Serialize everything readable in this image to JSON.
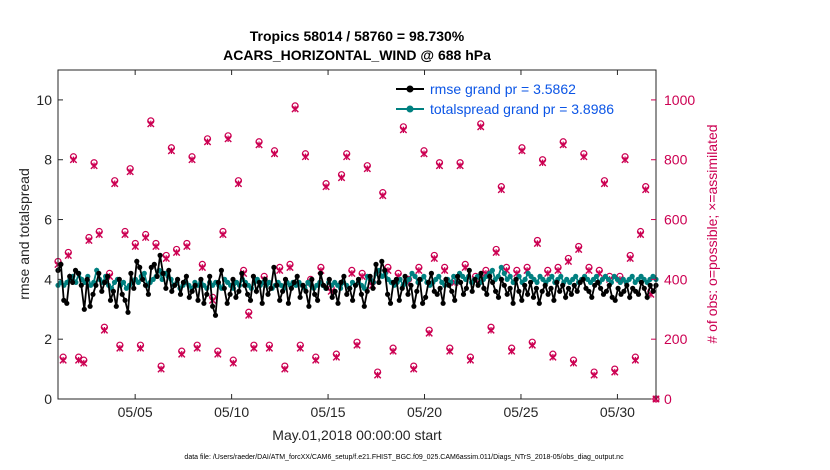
{
  "chart_data": {
    "type": "line",
    "title": "Tropics 58014 / 58760 = 98.730%",
    "subtitle": "ACARS_HORIZONTAL_WIND @ 688 hPa",
    "xlabel": "May.01,2018 00:00:00 start",
    "ylabel_left": "rmse and totalspread",
    "ylabel_right": "# of obs: o=possible; ×=assimilated",
    "x_range_days": [
      1,
      32
    ],
    "xticks": [
      {
        "day": 5,
        "label": "05/05"
      },
      {
        "day": 10,
        "label": "05/10"
      },
      {
        "day": 15,
        "label": "05/15"
      },
      {
        "day": 20,
        "label": "05/20"
      },
      {
        "day": 25,
        "label": "05/25"
      },
      {
        "day": 30,
        "label": "05/30"
      }
    ],
    "ylim_left": [
      0,
      11
    ],
    "yticks_left": [
      "0",
      "2",
      "4",
      "6",
      "8",
      "10"
    ],
    "ylim_right": [
      0,
      1100
    ],
    "yticks_right": [
      "0",
      "200",
      "400",
      "600",
      "800",
      "1000"
    ],
    "footnote": "data file: /Users/raeder/DAI/ATM_forcXX/CAM6_setup/f.e21.FHIST_BGC.f09_025.CAM6assim.011/Diags_NTrS_2018-05/obs_diag_output.nc",
    "legend_position": "top-right",
    "series": [
      {
        "name": "rmse grand pr = 3.5862",
        "axis": "left",
        "color": "#000000",
        "marker": "circle",
        "values": [
          4.3,
          4.5,
          3.3,
          3.2,
          4.1,
          3.9,
          4.3,
          4.2,
          3.8,
          3.0,
          4.0,
          3.1,
          3.5,
          3.8,
          4.2,
          3.6,
          3.9,
          4.1,
          3.3,
          3.6,
          3.1,
          4.0,
          3.5,
          3.3,
          2.9,
          4.2,
          3.7,
          4.6,
          4.4,
          4.0,
          3.8,
          3.5,
          4.4,
          4.5,
          4.1,
          4.8,
          4.2,
          3.7,
          4.3,
          3.6,
          3.8,
          4.0,
          3.5,
          3.9,
          4.1,
          3.4,
          3.6,
          3.8,
          3.3,
          4.0,
          3.2,
          3.5,
          4.1,
          3.1,
          2.8,
          3.9,
          4.3,
          3.7,
          3.2,
          3.5,
          4.0,
          3.4,
          3.6,
          4.2,
          3.8,
          3.5,
          3.3,
          4.1,
          3.6,
          3.9,
          3.2,
          4.0,
          3.5,
          3.7,
          4.4,
          3.8,
          3.3,
          3.6,
          4.0,
          3.2,
          3.7,
          3.9,
          4.1,
          3.4,
          3.8,
          3.6,
          3.1,
          4.0,
          3.5,
          3.3,
          4.2,
          3.8,
          3.7,
          4.0,
          3.4,
          3.6,
          3.2,
          3.9,
          4.1,
          3.5,
          3.7,
          3.3,
          3.8,
          4.0,
          3.5,
          3.1,
          3.6,
          4.1,
          3.7,
          4.5,
          3.9,
          4.6,
          4.3,
          3.5,
          3.2,
          3.9,
          4.0,
          3.3,
          3.7,
          4.1,
          3.5,
          3.8,
          3.1,
          3.6,
          4.0,
          3.2,
          3.4,
          3.9,
          4.2,
          3.6,
          3.5,
          3.7,
          3.2,
          4.0,
          3.8,
          3.6,
          3.3,
          4.1,
          3.9,
          3.5,
          3.7,
          4.3,
          3.6,
          4.0,
          3.8,
          4.2,
          3.7,
          3.5,
          4.1,
          3.9,
          3.6,
          3.4,
          4.0,
          3.8,
          3.5,
          3.7,
          3.2,
          4.0,
          3.6,
          3.3,
          3.8,
          3.5,
          3.9,
          3.4,
          3.7,
          3.2,
          3.6,
          3.8,
          3.5,
          3.7,
          3.3,
          3.9,
          3.6,
          3.8,
          3.4,
          3.7,
          3.5,
          3.8,
          3.6,
          3.9,
          4.0,
          3.7,
          3.6,
          3.4,
          3.8,
          3.9,
          3.7,
          3.5,
          3.6,
          3.8,
          3.4,
          3.3,
          3.7,
          3.5,
          3.6,
          3.8,
          3.4,
          3.7,
          3.6,
          3.5,
          3.9,
          3.7,
          3.4,
          3.8,
          3.6,
          3.8
        ]
      },
      {
        "name": "totalspread grand pr = 3.8986",
        "axis": "left",
        "color": "#008080",
        "marker": "circle",
        "values": [
          3.8,
          3.9,
          3.8,
          3.9,
          4.0,
          4.1,
          3.9,
          4.2,
          4.0,
          3.9,
          4.1,
          3.8,
          3.9,
          4.3,
          4.0,
          3.9,
          4.1,
          3.8,
          3.7,
          3.9,
          4.0,
          3.8,
          3.9,
          3.7,
          3.8,
          3.9,
          4.0,
          3.9,
          4.1,
          4.2,
          3.8,
          3.9,
          4.0,
          4.1,
          4.3,
          4.0,
          4.2,
          4.1,
          4.0,
          3.8,
          3.9,
          3.7,
          3.8,
          3.9,
          3.8,
          3.7,
          3.9,
          3.8,
          3.9,
          3.8,
          3.7,
          3.9,
          3.8,
          3.9,
          3.8,
          3.7,
          4.0,
          3.9,
          3.8,
          3.7,
          3.9,
          3.8,
          4.0,
          3.9,
          3.8,
          3.7,
          3.9,
          4.0,
          3.8,
          3.9,
          3.8,
          3.9,
          3.7,
          3.8,
          3.9,
          3.8,
          3.7,
          3.9,
          3.8,
          3.9,
          3.8,
          3.9,
          3.8,
          3.7,
          3.9,
          3.8,
          3.7,
          3.8,
          3.9,
          3.8,
          3.7,
          3.9,
          3.8,
          3.9,
          3.8,
          3.7,
          3.9,
          3.8,
          3.7,
          3.9,
          3.8,
          3.9,
          3.8,
          3.7,
          4.1,
          4.0,
          3.9,
          4.2,
          4.3,
          4.1,
          4.2,
          4.0,
          3.9,
          3.8,
          3.9,
          4.0,
          3.8,
          3.9,
          4.0,
          4.2,
          4.1,
          3.9,
          4.0,
          4.1,
          3.9,
          3.8,
          3.9,
          4.0,
          4.1,
          3.9,
          3.8,
          4.0,
          3.9,
          4.1,
          3.9,
          4.2,
          4.1,
          4.0,
          4.1,
          3.9,
          4.0,
          4.1,
          3.9,
          4.0,
          4.1,
          4.2,
          4.3,
          4.0,
          4.1,
          4.4,
          4.2,
          4.0,
          4.1,
          3.9,
          4.0,
          4.1,
          3.9,
          4.0,
          4.2,
          4.1,
          4.0,
          3.9,
          4.1,
          4.0,
          3.9,
          4.0,
          4.1,
          3.9,
          4.0,
          4.1,
          3.9,
          4.0,
          3.9,
          4.0,
          4.1,
          3.9,
          4.0,
          4.1,
          4.0,
          3.9,
          4.0,
          4.1,
          3.9,
          4.0,
          4.1,
          4.0,
          3.9,
          4.1,
          4.0,
          3.9,
          4.0,
          3.9,
          4.0,
          4.1,
          3.9,
          4.0,
          4.1,
          4.0,
          3.9,
          4.0,
          4.1,
          4.0
        ]
      },
      {
        "name": "obs possible",
        "axis": "right",
        "color": "#cc0052",
        "marker": "o",
        "values": [
          460,
          140,
          490,
          810,
          140,
          130,
          540,
          790,
          560,
          240,
          420,
          730,
          180,
          560,
          770,
          520,
          180,
          550,
          930,
          520,
          110,
          480,
          840,
          500,
          160,
          520,
          810,
          180,
          450,
          870,
          340,
          160,
          560,
          880,
          130,
          730,
          430,
          290,
          180,
          860,
          410,
          180,
          830,
          440,
          110,
          450,
          980,
          180,
          820,
          400,
          140,
          440,
          720,
          370,
          150,
          750,
          820,
          430,
          190,
          420,
          780,
          390,
          90,
          690,
          440,
          170,
          420,
          910,
          400,
          110,
          440,
          830,
          230,
          480,
          790,
          440,
          170,
          400,
          790,
          450,
          140,
          410,
          920,
          430,
          240,
          500,
          710,
          440,
          170,
          430,
          840,
          440,
          190,
          530,
          800,
          430,
          150,
          440,
          860,
          470,
          130,
          510,
          820,
          440,
          90,
          430,
          730,
          410,
          100,
          410,
          810,
          480,
          140,
          560,
          710,
          360,
          0
        ]
      },
      {
        "name": "obs assimilated",
        "axis": "right",
        "color": "#cc0052",
        "marker": "x",
        "values": [
          450,
          130,
          480,
          800,
          130,
          120,
          530,
          780,
          550,
          230,
          410,
          720,
          170,
          550,
          760,
          510,
          170,
          540,
          920,
          510,
          100,
          470,
          830,
          490,
          150,
          510,
          800,
          170,
          440,
          860,
          330,
          150,
          550,
          870,
          120,
          720,
          420,
          280,
          170,
          850,
          400,
          170,
          820,
          430,
          100,
          440,
          970,
          170,
          810,
          390,
          130,
          430,
          710,
          360,
          140,
          740,
          810,
          420,
          180,
          410,
          770,
          380,
          80,
          680,
          430,
          160,
          410,
          900,
          390,
          100,
          430,
          820,
          220,
          470,
          780,
          430,
          160,
          390,
          780,
          440,
          130,
          400,
          910,
          420,
          230,
          490,
          700,
          430,
          160,
          420,
          830,
          430,
          180,
          520,
          790,
          420,
          140,
          430,
          850,
          460,
          120,
          500,
          810,
          430,
          80,
          420,
          720,
          400,
          90,
          400,
          800,
          470,
          130,
          550,
          700,
          350,
          0
        ]
      }
    ]
  }
}
